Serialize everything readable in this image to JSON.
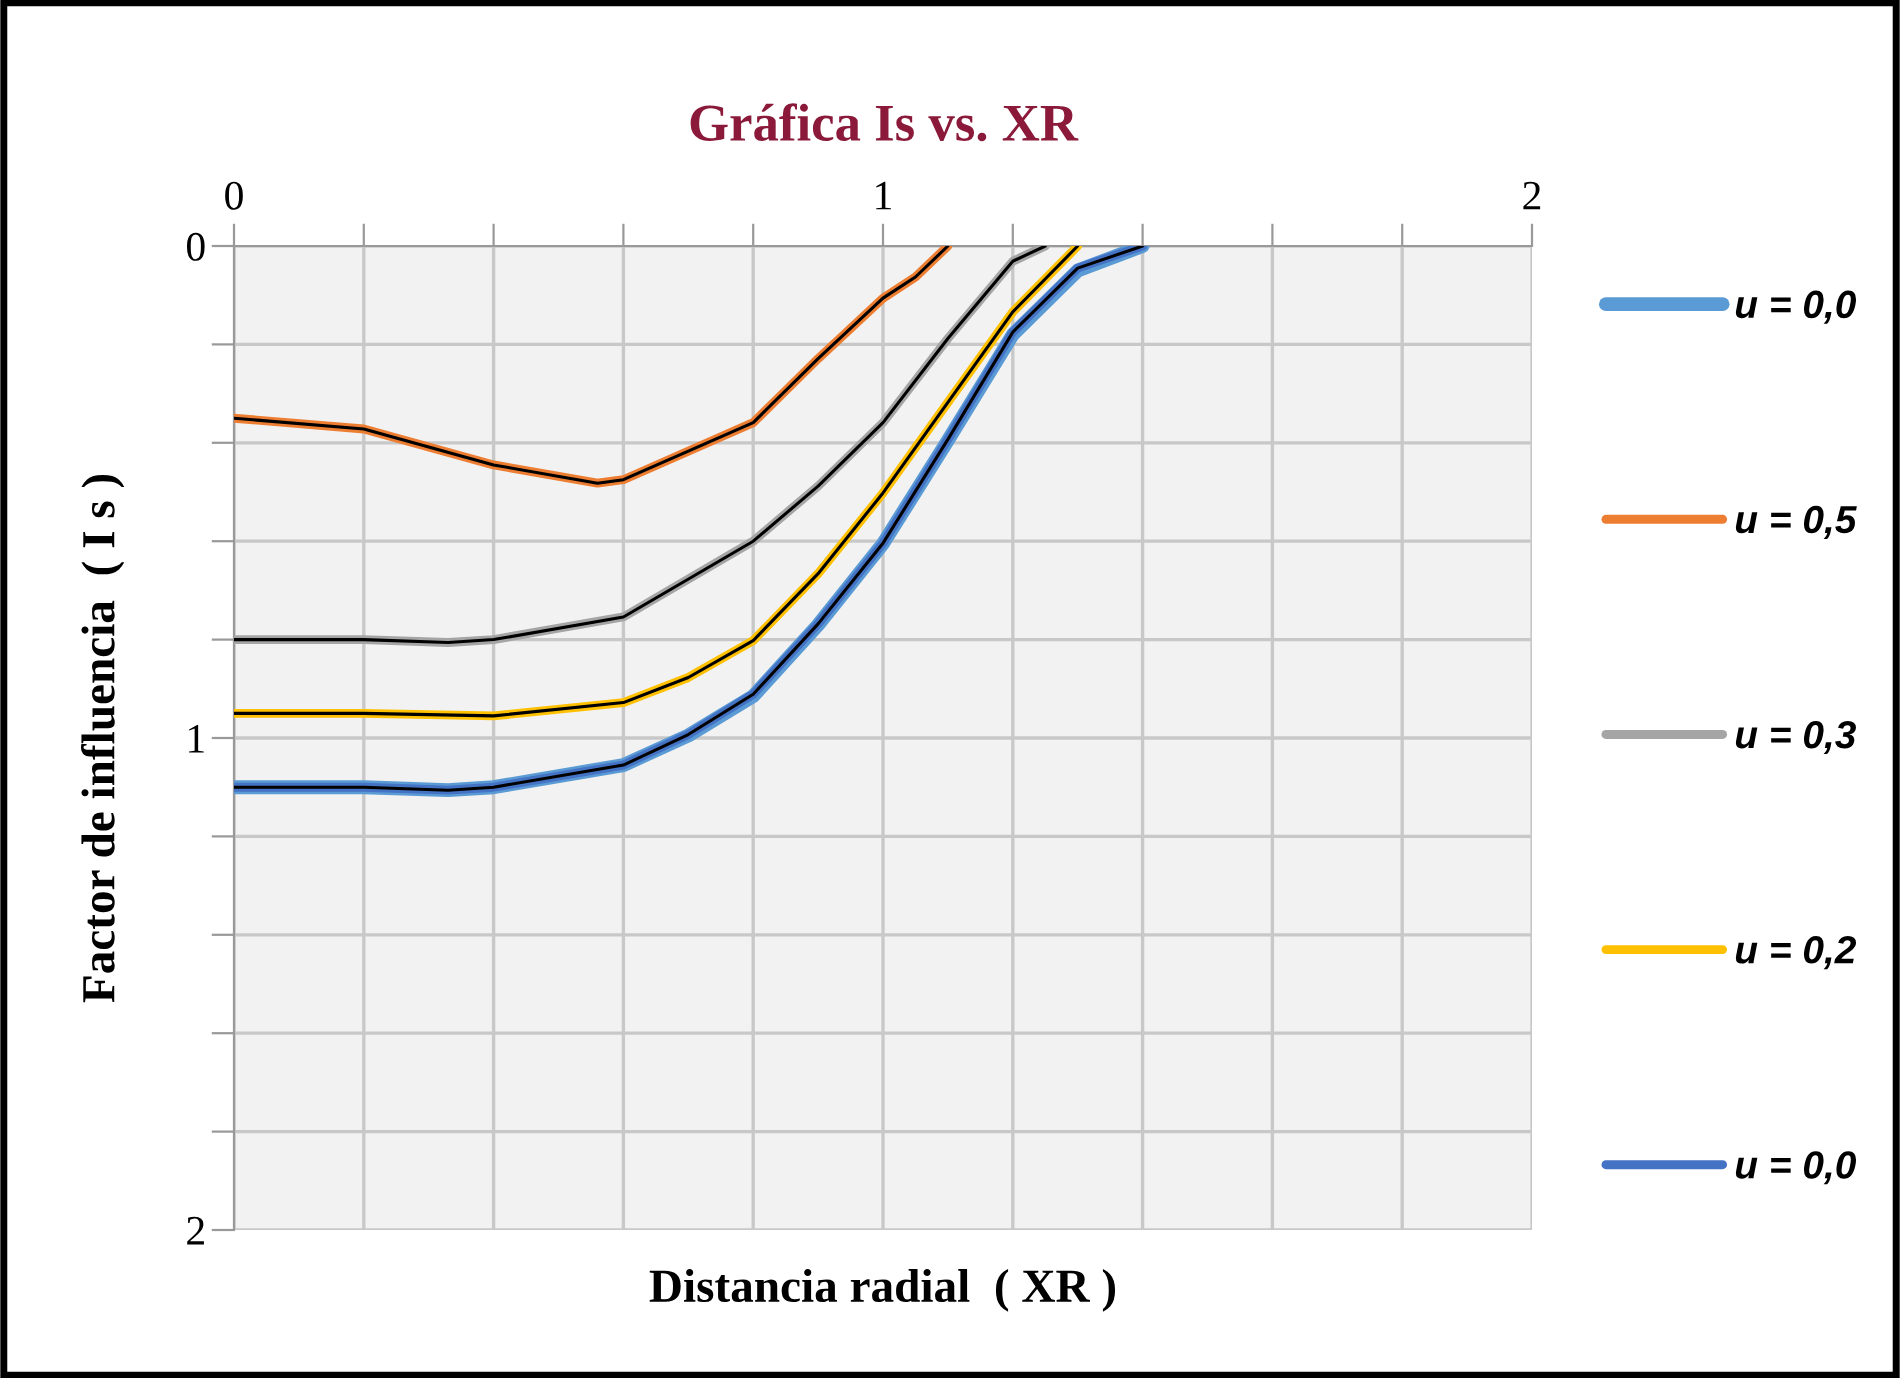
{
  "chart_data": {
    "type": "line",
    "title": "Gráfica Is vs. XR",
    "xlabel": "Distancia radial  ( XR )",
    "ylabel": "Factor de influencia  ( I s )",
    "xlim": [
      0,
      2
    ],
    "ylim": [
      2,
      0
    ],
    "xticks": [
      0,
      {
        "value": 0.2,
        "label": null
      },
      {
        "value": 0.4,
        "label": null
      },
      {
        "value": 0.6,
        "label": null
      },
      {
        "value": 0.8,
        "label": null
      },
      1,
      {
        "value": 1.2,
        "label": null
      },
      {
        "value": 1.4,
        "label": null
      },
      {
        "value": 1.6,
        "label": null
      },
      {
        "value": 1.8,
        "label": null
      },
      2
    ],
    "yticks": [
      0,
      {
        "value": 0.2,
        "label": null
      },
      {
        "value": 0.4,
        "label": null
      },
      {
        "value": 0.6,
        "label": null
      },
      {
        "value": 0.8,
        "label": null
      },
      1,
      {
        "value": 1.2,
        "label": null
      },
      {
        "value": 1.4,
        "label": null
      },
      {
        "value": 1.6,
        "label": null
      },
      {
        "value": 1.8,
        "label": null
      },
      2
    ],
    "grid": true,
    "legend": "right",
    "marker": "none",
    "line_style": "solid",
    "series": [
      {
        "name": "u = 0,0",
        "color": "#5b9bd5",
        "x": [
          0,
          0.2,
          0.33,
          0.4,
          0.6,
          0.7,
          0.8,
          0.9,
          1.0,
          1.1,
          1.2,
          1.3,
          1.4
        ],
        "values": [
          1.1,
          1.1,
          1.106,
          1.1,
          1.055,
          0.995,
          0.915,
          0.77,
          0.605,
          0.395,
          0.18,
          0.05,
          0
        ]
      },
      {
        "name": "u = 0,5",
        "color": "#ed7d31",
        "x": [
          0,
          0.2,
          0.4,
          0.56,
          0.6,
          0.8,
          0.9,
          1.0,
          1.05,
          1.1
        ],
        "values": [
          0.35,
          0.372,
          0.445,
          0.482,
          0.475,
          0.359,
          0.229,
          0.106,
          0.063,
          0
        ]
      },
      {
        "name": "u = 0,3",
        "color": "#a5a5a5",
        "x": [
          0,
          0.2,
          0.33,
          0.4,
          0.6,
          0.8,
          0.9,
          1.0,
          1.1,
          1.2,
          1.25
        ],
        "values": [
          0.8,
          0.8,
          0.806,
          0.8,
          0.754,
          0.6,
          0.488,
          0.359,
          0.188,
          0.031,
          0
        ]
      },
      {
        "name": "u = 0,2",
        "color": "#ffc000",
        "x": [
          0,
          0.2,
          0.4,
          0.6,
          0.7,
          0.8,
          0.9,
          1.0,
          1.1,
          1.2,
          1.3
        ],
        "values": [
          0.95,
          0.95,
          0.955,
          0.928,
          0.877,
          0.802,
          0.666,
          0.502,
          0.318,
          0.134,
          0
        ]
      },
      {
        "name": "u = 0,0",
        "color": "#4472c4",
        "x": [
          0,
          0.2,
          0.33,
          0.4,
          0.6,
          0.7,
          0.8,
          0.9,
          1.0,
          1.1,
          1.2,
          1.3,
          1.4
        ],
        "values": [
          1.1,
          1.1,
          1.106,
          1.1,
          1.055,
          0.993,
          0.911,
          0.768,
          0.604,
          0.393,
          0.175,
          0.045,
          0
        ]
      },
      {
        "color": "#000000",
        "x": [
          0,
          0.2,
          0.4,
          0.56,
          0.6,
          0.8,
          0.9,
          1.0,
          1.05,
          1.1
        ],
        "values": [
          0.35,
          0.372,
          0.445,
          0.482,
          0.475,
          0.359,
          0.229,
          0.106,
          0.063,
          0
        ]
      },
      {
        "color": "#000000",
        "x": [
          0,
          0.2,
          0.33,
          0.4,
          0.6,
          0.8,
          0.9,
          1.0,
          1.1,
          1.2,
          1.25
        ],
        "values": [
          0.8,
          0.8,
          0.806,
          0.8,
          0.754,
          0.6,
          0.488,
          0.359,
          0.188,
          0.031,
          0
        ]
      },
      {
        "color": "#000000",
        "x": [
          0,
          0.2,
          0.4,
          0.6,
          0.7,
          0.8,
          0.9,
          1.0,
          1.1,
          1.2,
          1.3
        ],
        "values": [
          0.95,
          0.95,
          0.955,
          0.928,
          0.877,
          0.802,
          0.666,
          0.502,
          0.318,
          0.134,
          0
        ]
      },
      {
        "color": "#000000",
        "x": [
          0,
          0.2,
          0.33,
          0.4,
          0.6,
          0.7,
          0.8,
          0.9,
          1.0,
          1.1,
          1.2,
          1.3,
          1.4
        ],
        "values": [
          1.1,
          1.1,
          1.106,
          1.1,
          1.055,
          0.993,
          0.911,
          0.768,
          0.604,
          0.393,
          0.175,
          0.045,
          0
        ]
      }
    ]
  }
}
